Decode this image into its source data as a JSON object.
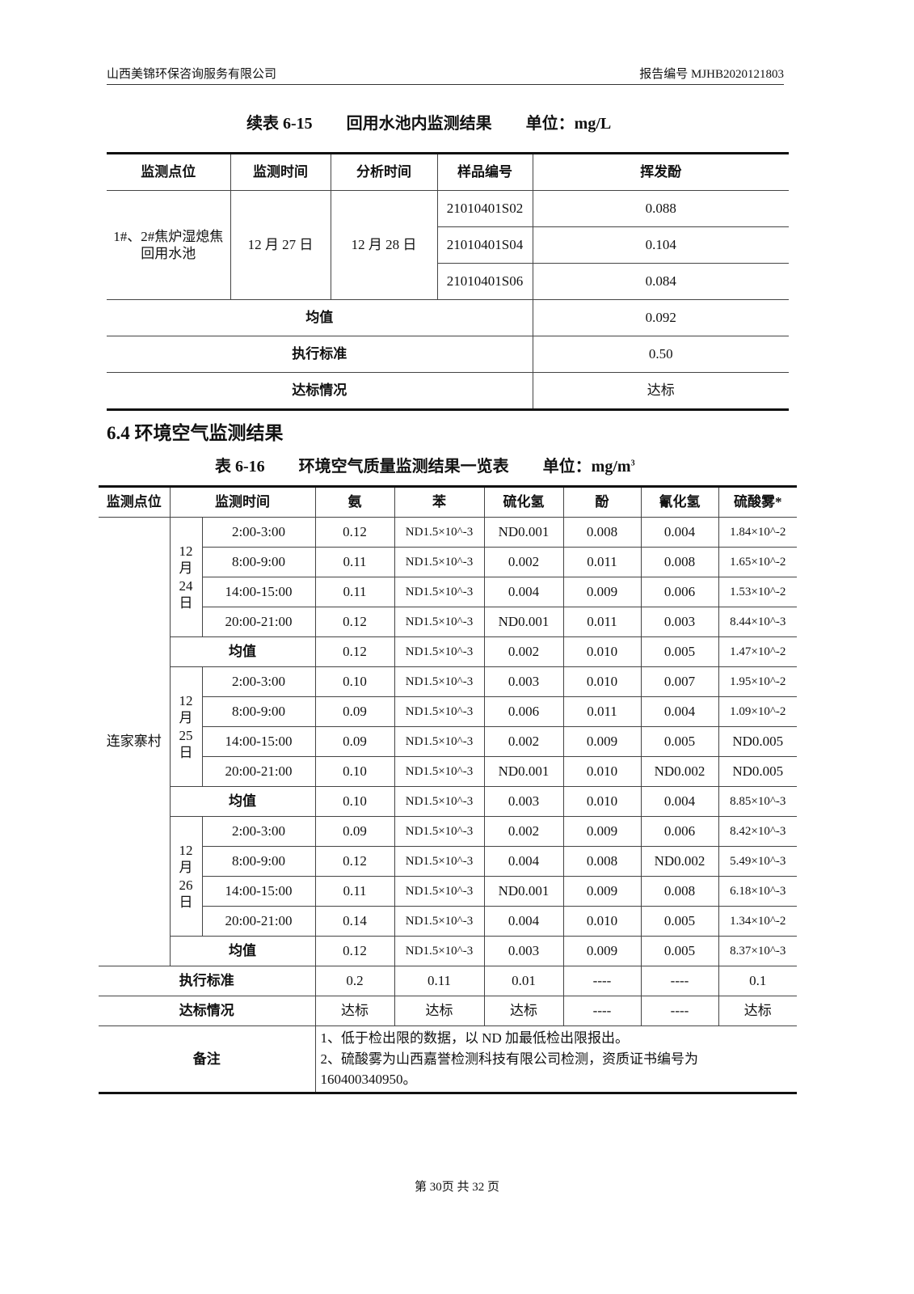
{
  "header": {
    "company": "山西美锦环保咨询服务有限公司",
    "report_no": "报告编号 MJHB2020121803"
  },
  "table1": {
    "caption": {
      "prefix": "续表 6-15",
      "name": "回用水池内监测结果",
      "unit": "单位：mg/L"
    },
    "headers": [
      "监测点位",
      "监测时间",
      "分析时间",
      "样品编号",
      "挥发酚"
    ],
    "site": "1#、2#焦炉湿熄焦回用水池",
    "monitor_time": "12 月 27 日",
    "analysis_time": "12 月 28 日",
    "samples": [
      {
        "id": "21010401S02",
        "value": "0.088"
      },
      {
        "id": "21010401S04",
        "value": "0.104"
      },
      {
        "id": "21010401S06",
        "value": "0.084"
      }
    ],
    "summary": [
      {
        "label": "均值",
        "value": "0.092"
      },
      {
        "label": "执行标准",
        "value": "0.50"
      },
      {
        "label": "达标情况",
        "value": "达标"
      }
    ]
  },
  "section": {
    "title": "6.4  环境空气监测结果"
  },
  "table2": {
    "caption": {
      "prefix": "表 6-16",
      "name": "环境空气质量监测结果一览表",
      "unit": "单位：mg/m^3"
    },
    "headers": [
      "监测点位",
      "监测时间",
      "氨",
      "苯",
      "硫化氢",
      "酚",
      "氰化氢",
      "硫酸雾*"
    ],
    "site": "连家寨村",
    "days": [
      {
        "date": "12 月 24 日",
        "rows": [
          {
            "time": "2:00-3:00",
            "values": [
              "0.12",
              "ND1.5×10^-3",
              "ND0.001",
              "0.008",
              "0.004",
              "1.84×10^-2"
            ]
          },
          {
            "time": "8:00-9:00",
            "values": [
              "0.11",
              "ND1.5×10^-3",
              "0.002",
              "0.011",
              "0.008",
              "1.65×10^-2"
            ]
          },
          {
            "time": "14:00-15:00",
            "values": [
              "0.11",
              "ND1.5×10^-3",
              "0.004",
              "0.009",
              "0.006",
              "1.53×10^-2"
            ]
          },
          {
            "time": "20:00-21:00",
            "values": [
              "0.12",
              "ND1.5×10^-3",
              "ND0.001",
              "0.011",
              "0.003",
              "8.44×10^-3"
            ]
          }
        ],
        "mean": {
          "label": "均值",
          "values": [
            "0.12",
            "ND1.5×10^-3",
            "0.002",
            "0.010",
            "0.005",
            "1.47×10^-2"
          ]
        }
      },
      {
        "date": "12 月 25 日",
        "rows": [
          {
            "time": "2:00-3:00",
            "values": [
              "0.10",
              "ND1.5×10^-3",
              "0.003",
              "0.010",
              "0.007",
              "1.95×10^-2"
            ]
          },
          {
            "time": "8:00-9:00",
            "values": [
              "0.09",
              "ND1.5×10^-3",
              "0.006",
              "0.011",
              "0.004",
              "1.09×10^-2"
            ]
          },
          {
            "time": "14:00-15:00",
            "values": [
              "0.09",
              "ND1.5×10^-3",
              "0.002",
              "0.009",
              "0.005",
              "ND0.005"
            ]
          },
          {
            "time": "20:00-21:00",
            "values": [
              "0.10",
              "ND1.5×10^-3",
              "ND0.001",
              "0.010",
              "ND0.002",
              "ND0.005"
            ]
          }
        ],
        "mean": {
          "label": "均值",
          "values": [
            "0.10",
            "ND1.5×10^-3",
            "0.003",
            "0.010",
            "0.004",
            "8.85×10^-3"
          ]
        }
      },
      {
        "date": "12 月 26 日",
        "rows": [
          {
            "time": "2:00-3:00",
            "values": [
              "0.09",
              "ND1.5×10^-3",
              "0.002",
              "0.009",
              "0.006",
              "8.42×10^-3"
            ]
          },
          {
            "time": "8:00-9:00",
            "values": [
              "0.12",
              "ND1.5×10^-3",
              "0.004",
              "0.008",
              "ND0.002",
              "5.49×10^-3"
            ]
          },
          {
            "time": "14:00-15:00",
            "values": [
              "0.11",
              "ND1.5×10^-3",
              "ND0.001",
              "0.009",
              "0.008",
              "6.18×10^-3"
            ]
          },
          {
            "time": "20:00-21:00",
            "values": [
              "0.14",
              "ND1.5×10^-3",
              "0.004",
              "0.010",
              "0.005",
              "1.34×10^-2"
            ]
          }
        ],
        "mean": {
          "label": "均值",
          "values": [
            "0.12",
            "ND1.5×10^-3",
            "0.003",
            "0.009",
            "0.005",
            "8.37×10^-3"
          ]
        }
      }
    ],
    "standard": {
      "label": "执行标准",
      "values": [
        "0.2",
        "0.11",
        "0.01",
        "----",
        "----",
        "0.1"
      ]
    },
    "compliance": {
      "label": "达标情况",
      "values": [
        "达标",
        "达标",
        "达标",
        "----",
        "----",
        "达标"
      ]
    },
    "remarks": {
      "label": "备注",
      "lines": [
        "1、低于检出限的数据，以 ND 加最低检出限报出。",
        "2、硫酸雾为山西嘉誉检测科技有限公司检测，资质证书编号为160400340950。"
      ]
    }
  },
  "footer": {
    "page": "第 30页  共 32 页"
  }
}
